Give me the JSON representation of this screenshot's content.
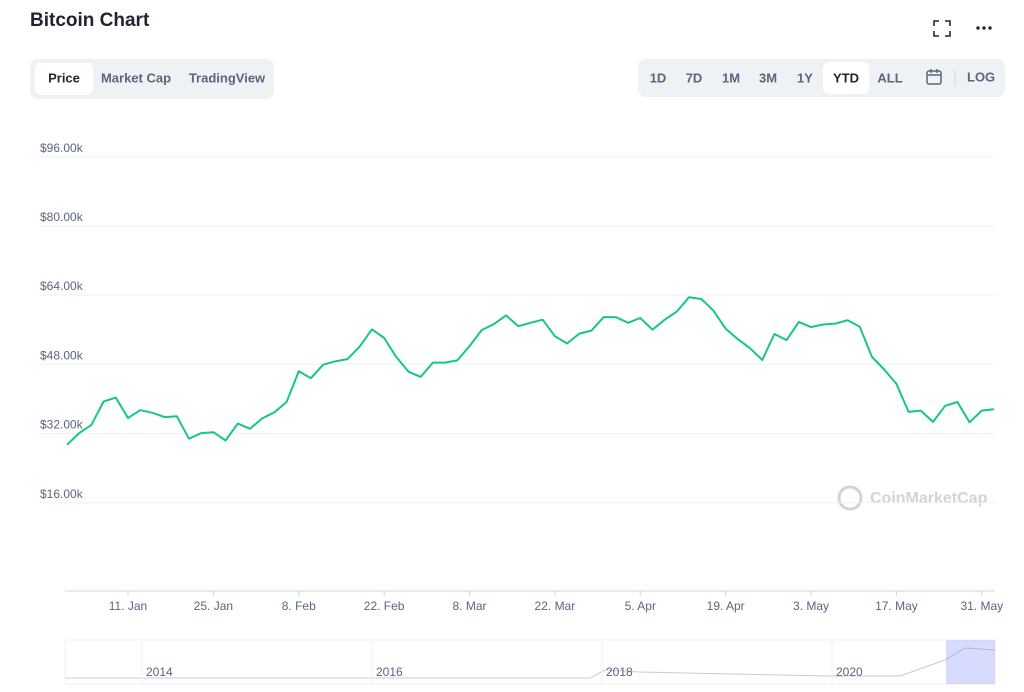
{
  "header": {
    "title": "Bitcoin Chart"
  },
  "tabs": [
    "Price",
    "Market Cap",
    "TradingView"
  ],
  "active_tab": 0,
  "ranges": [
    "1D",
    "7D",
    "1M",
    "3M",
    "1Y",
    "YTD",
    "ALL"
  ],
  "active_range": 5,
  "log_button": "LOG",
  "watermark": "CoinMarketCap",
  "navigator": {
    "labels": [
      "2014",
      "2016",
      "2018",
      "2020"
    ]
  },
  "chart_data": {
    "type": "line",
    "categories": [
      null,
      null,
      null,
      null,
      null,
      "11. Jan",
      null,
      null,
      null,
      null,
      null,
      null,
      "25. Jan",
      null,
      null,
      null,
      null,
      null,
      null,
      "8. Feb",
      null,
      null,
      null,
      null,
      null,
      null,
      "22. Feb",
      null,
      null,
      null,
      null,
      null,
      null,
      "8. Mar",
      null,
      null,
      null,
      null,
      null,
      null,
      "22. Mar",
      null,
      null,
      null,
      null,
      null,
      null,
      "5. Apr",
      null,
      null,
      null,
      null,
      null,
      null,
      "19. Apr",
      null,
      null,
      null,
      null,
      null,
      null,
      "3. May",
      null,
      null,
      null,
      null,
      null,
      null,
      "17. May",
      null,
      null,
      null,
      null,
      null,
      null,
      "31. May",
      null
    ],
    "series": [
      {
        "name": "Price",
        "color": "#16c784",
        "values": [
          29400,
          32100,
          34000,
          39400,
          40300,
          35600,
          37400,
          36800,
          35800,
          36000,
          30800,
          32100,
          32300,
          30400,
          34300,
          33100,
          35500,
          36900,
          39300,
          46400,
          44800,
          47900,
          48700,
          49200,
          52100,
          56100,
          54100,
          49700,
          46300,
          45100,
          48400,
          48400,
          48900,
          52200,
          55900,
          57300,
          59300,
          56800,
          57600,
          58300,
          54500,
          52800,
          55100,
          55800,
          58900,
          58900,
          57600,
          58700,
          56000,
          58300,
          60200,
          63500,
          63100,
          60400,
          56200,
          53800,
          51700,
          49000,
          55000,
          53600,
          57800,
          56600,
          57200,
          57400,
          58200,
          56700,
          49700,
          46800,
          43500,
          37000,
          37300,
          34700,
          38400,
          39300,
          34600,
          37300,
          37600
        ]
      }
    ],
    "ylim": [
      0,
      104000
    ],
    "yticks": [
      {
        "value": 16000,
        "label": "$16.00k"
      },
      {
        "value": 32000,
        "label": "$32.00k"
      },
      {
        "value": 48000,
        "label": "$48.00k"
      },
      {
        "value": 64000,
        "label": "$64.00k"
      },
      {
        "value": 80000,
        "label": "$80.00k"
      },
      {
        "value": 96000,
        "label": "$96.00k"
      }
    ],
    "grid": true
  }
}
